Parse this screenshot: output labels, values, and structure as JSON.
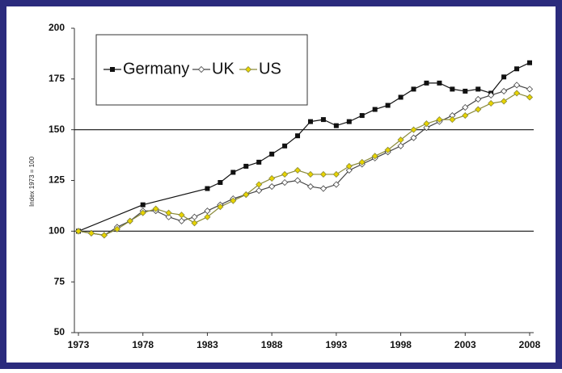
{
  "chart_data": {
    "type": "line",
    "ylabel": "Index 1973 = 100",
    "xlim": [
      1973,
      2008
    ],
    "xticks": [
      1973,
      1978,
      1983,
      1988,
      1993,
      1998,
      2003,
      2008
    ],
    "ylim": [
      50,
      200
    ],
    "yticks": [
      50,
      75,
      100,
      125,
      150,
      175,
      200
    ],
    "grid_values": [
      100,
      150
    ],
    "legend": "top-left",
    "series": [
      {
        "name": "Germany",
        "color": "#111111",
        "marker": "square",
        "marker_fill": "#111111",
        "x": [
          1973,
          1978,
          1983,
          1984,
          1985,
          1986,
          1987,
          1988,
          1989,
          1990,
          1991,
          1992,
          1993,
          1994,
          1995,
          1996,
          1997,
          1998,
          1999,
          2000,
          2001,
          2002,
          2003,
          2004,
          2005,
          2006,
          2007,
          2008
        ],
        "values": [
          100,
          113,
          121,
          124,
          129,
          132,
          134,
          138,
          142,
          147,
          154,
          155,
          152,
          154,
          157,
          160,
          162,
          166,
          170,
          173,
          173,
          170,
          169,
          170,
          168,
          176,
          180,
          183
        ]
      },
      {
        "name": "UK",
        "color": "#444444",
        "marker": "diamond",
        "marker_fill": "#ffffff",
        "x": [
          1973,
          1974,
          1975,
          1976,
          1977,
          1978,
          1979,
          1980,
          1981,
          1982,
          1983,
          1984,
          1985,
          1986,
          1987,
          1988,
          1989,
          1990,
          1991,
          1992,
          1993,
          1994,
          1995,
          1996,
          1997,
          1998,
          1999,
          2000,
          2001,
          2002,
          2003,
          2004,
          2005,
          2006,
          2007,
          2008
        ],
        "values": [
          100,
          99,
          98,
          102,
          105,
          110,
          110,
          107,
          105,
          107,
          110,
          113,
          116,
          118,
          120,
          122,
          124,
          125,
          122,
          121,
          123,
          130,
          133,
          136,
          139,
          142,
          146,
          151,
          154,
          157,
          161,
          165,
          167,
          169,
          172,
          170
        ]
      },
      {
        "name": "US",
        "color": "#8a8a3a",
        "marker": "diamond",
        "marker_fill": "#e8d400",
        "x": [
          1973,
          1974,
          1975,
          1976,
          1977,
          1978,
          1979,
          1980,
          1981,
          1982,
          1983,
          1984,
          1985,
          1986,
          1987,
          1988,
          1989,
          1990,
          1991,
          1992,
          1993,
          1994,
          1995,
          1996,
          1997,
          1998,
          1999,
          2000,
          2001,
          2002,
          2003,
          2004,
          2005,
          2006,
          2007,
          2008
        ],
        "values": [
          100,
          99,
          98,
          101,
          105,
          109,
          111,
          109,
          108,
          104,
          107,
          112,
          115,
          118,
          123,
          126,
          128,
          130,
          128,
          128,
          128,
          132,
          134,
          137,
          140,
          145,
          150,
          153,
          155,
          155,
          157,
          160,
          163,
          164,
          168,
          166
        ]
      }
    ]
  }
}
